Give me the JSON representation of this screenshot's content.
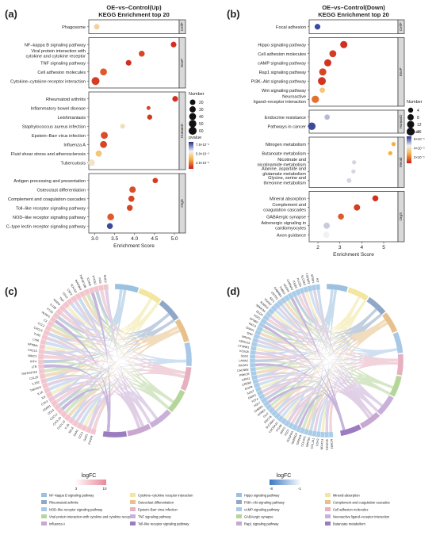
{
  "panels": {
    "a": {
      "letter": "(a)",
      "title1": "OE–vs–Control(Up)",
      "title2": "KEGG Enrichment top 20",
      "xlabel": "Enrichment Score",
      "xticks": [
        3.0,
        3.5,
        4.0,
        4.5,
        5.0
      ],
      "xlim": [
        2.85,
        5.12
      ],
      "groups": [
        {
          "label": "CellP",
          "terms": [
            {
              "name": "Phagosome",
              "x": 3.05,
              "count": 20,
              "p": 0.5
            }
          ]
        },
        {
          "label": "EnvP",
          "terms": [
            {
              "name": "NF–kappa B signaling pathway",
              "x": 4.98,
              "count": 22,
              "p": 0.05
            },
            {
              "name": "Viral protein interaction with cytokine and cytokine receptor",
              "x": 4.18,
              "count": 25,
              "p": 0.1
            },
            {
              "name": "TNF signaling pathway",
              "x": 3.85,
              "count": 22,
              "p": 0.05
            },
            {
              "name": "Cell adhesion molecules",
              "x": 3.22,
              "count": 40,
              "p": 0.15
            },
            {
              "name": "Cytokine–cytokine receptor interaction",
              "x": 3.02,
              "count": 60,
              "p": 0.08
            }
          ]
        },
        {
          "label": "HumanD",
          "terms": [
            {
              "name": "Rheumatoid arthritis",
              "x": 5.02,
              "count": 22,
              "p": 0.05
            },
            {
              "name": "Inflammatory bowel disease",
              "x": 4.35,
              "count": 5,
              "p": 0.1
            },
            {
              "name": "Leishmaniasis",
              "x": 4.38,
              "count": 15,
              "p": 0.07
            },
            {
              "name": "Staphylococcus aureus infection",
              "x": 3.7,
              "count": 12,
              "p": 0.55
            },
            {
              "name": "Epstein–Barr virus infection",
              "x": 3.24,
              "count": 42,
              "p": 0.12
            },
            {
              "name": "Influenza A",
              "x": 3.22,
              "count": 40,
              "p": 0.1
            },
            {
              "name": "Fluid shear stress and atherosclerosis",
              "x": 3.1,
              "count": 30,
              "p": 0.45
            },
            {
              "name": "Tuberculosis",
              "x": 2.92,
              "count": 35,
              "p": 0.58
            }
          ]
        },
        {
          "label": "OrgS",
          "terms": [
            {
              "name": "Antigen processing and presentation",
              "x": 4.52,
              "count": 18,
              "p": 0.08
            },
            {
              "name": "Osteoclast differentiation",
              "x": 3.95,
              "count": 32,
              "p": 0.12
            },
            {
              "name": "Complement and coagulation cascades",
              "x": 3.92,
              "count": 28,
              "p": 0.1
            },
            {
              "name": "Toll–like receptor signaling pathway",
              "x": 3.88,
              "count": 25,
              "p": 0.1
            },
            {
              "name": "NOD–like receptor signaling pathway",
              "x": 3.4,
              "count": 38,
              "p": 0.15
            },
            {
              "name": "C–type lectin receptor signaling pathway",
              "x": 3.38,
              "count": 25,
              "p": 0.95
            }
          ]
        }
      ],
      "size_legend": {
        "title": "Number",
        "values": [
          20,
          30,
          40,
          50,
          60
        ]
      },
      "color_legend": {
        "title": "pvalue",
        "labels": [
          "7.5×10⁻⁵",
          "5.0×10⁻⁵",
          "2.5×10⁻⁵"
        ]
      }
    },
    "b": {
      "letter": "(b)",
      "title1": "OE–vs–Control(Down)",
      "title2": "KEGG Enrichment top 20",
      "xlabel": "Enrichment Score",
      "xticks": [
        2,
        3,
        4,
        5
      ],
      "xlim": [
        1.6,
        5.65
      ],
      "groups": [
        {
          "label": "CellP",
          "terms": [
            {
              "name": "Focal adhesion",
              "x": 1.98,
              "count": 6,
              "p": 0.95
            }
          ]
        },
        {
          "label": "EnvP",
          "terms": [
            {
              "name": "Hippo signaling pathway",
              "x": 3.18,
              "count": 12,
              "p": 0.05
            },
            {
              "name": "Cell adhesion molecules",
              "x": 2.68,
              "count": 11,
              "p": 0.08
            },
            {
              "name": "cAMP signaling pathway",
              "x": 2.45,
              "count": 12,
              "p": 0.06
            },
            {
              "name": "Rap1 signaling pathway",
              "x": 2.22,
              "count": 12,
              "p": 0.1
            },
            {
              "name": "PI3K–Akt signaling pathway",
              "x": 2.18,
              "count": 16,
              "p": 0.06
            },
            {
              "name": "Wnt signaling pathway",
              "x": 2.2,
              "count": 5,
              "p": 0.45
            },
            {
              "name": "Neuroactive ligand–receptor interaction",
              "x": 1.88,
              "count": 13,
              "p": 0.2
            }
          ]
        },
        {
          "label": "HumanD",
          "terms": [
            {
              "name": "Endocrine resistance",
              "x": 2.42,
              "count": 5,
              "p": 0.75
            },
            {
              "name": "Pathways in cancer",
              "x": 1.72,
              "count": 14,
              "p": 0.95
            }
          ]
        },
        {
          "label": "Metab",
          "terms": [
            {
              "name": "Nitrogen metabolism",
              "x": 5.45,
              "count": 2,
              "p": 0.35
            },
            {
              "name": "Butanoate metabolism",
              "x": 5.3,
              "count": 2,
              "p": 0.35
            },
            {
              "name": "Nicotinate and nicotinamide metabolism",
              "x": 3.65,
              "count": 2,
              "p": 0.7
            },
            {
              "name": "Alanine, aspartate and glutamate metabolism",
              "x": 3.62,
              "count": 2,
              "p": 0.7
            },
            {
              "name": "Glycine, serine and threonine metabolism",
              "x": 3.42,
              "count": 3,
              "p": 0.7
            }
          ]
        },
        {
          "label": "OrgS",
          "terms": [
            {
              "name": "Mineral absorption",
              "x": 4.62,
              "count": 7,
              "p": 0.05
            },
            {
              "name": "Complement and coagulation cascades",
              "x": 3.78,
              "count": 8,
              "p": 0.08
            },
            {
              "name": "GABAergic synapse",
              "x": 3.05,
              "count": 7,
              "p": 0.15
            },
            {
              "name": "Adrenergic signaling in cardiomyocytes",
              "x": 2.4,
              "count": 8,
              "p": 0.72
            },
            {
              "name": "Axon guidance",
              "x": 2.38,
              "count": 8,
              "p": 0.65
            }
          ]
        }
      ],
      "size_legend": {
        "title": "Number",
        "values": [
          4,
          8,
          12,
          16
        ]
      },
      "color_legend": {
        "title": "pvalue",
        "labels": [
          "6×10⁻³",
          "4×10⁻³",
          "2×10⁻³"
        ]
      }
    },
    "c": {
      "letter": "(c)",
      "genes": [
        "PTAFR",
        "GAS1",
        "CCL1",
        "SAA1",
        "SELE",
        "IL1B",
        "CXCL13",
        "CXCL10",
        "CXCL2",
        "CCL4",
        "C5AR1",
        "CSF3",
        "IL6",
        "IL1A",
        "TNFAIP3",
        "IL1R2",
        "CCL20",
        "TNFRSF11A",
        "LTB",
        "IRF4",
        "BIRC3",
        "CXCL5",
        "NFKBIA",
        "LY96",
        "TLR2",
        "CXCL3",
        "CCL2",
        "C3",
        "NLRP3",
        "PTX3",
        "IL12B",
        "MMP9",
        "TNF",
        "CD14",
        "CSF2",
        "SOCS3",
        "MAP3K8",
        "TNFSF13B",
        "ICAM1",
        "PTGS2",
        "FOS",
        "NOD2"
      ],
      "legend": {
        "title": "logFC",
        "ticks": [
          "3",
          "10"
        ],
        "items": [
          {
            "label": "NF–kappa B signaling pathway",
            "color": "#9cc0e0"
          },
          {
            "label": "Cytokine–cytokine receptor interaction",
            "color": "#f2e6a0"
          },
          {
            "label": "Rheumatoid arthritis",
            "color": "#8fa8c8"
          },
          {
            "label": "Osteoclast differentiation",
            "color": "#e8c08a"
          },
          {
            "label": "NOD–like receptor signaling pathway",
            "color": "#a8c8e8"
          },
          {
            "label": "Epstein–Barr virus infection",
            "color": "#e6b0c0"
          },
          {
            "label": "Viral protein interaction with cytokine and cytokine receptor",
            "color": "#b6d59a"
          },
          {
            "label": "TNF signaling pathway",
            "color": "#c8b0d8"
          },
          {
            "label": "Influenza A",
            "color": "#c8a8d0"
          },
          {
            "label": "Toll–like receptor signaling pathway",
            "color": "#9b7cc0"
          }
        ]
      }
    },
    "d": {
      "letter": "(d)",
      "genes": [
        "NCAM1",
        "SHANK1",
        "NFATC4",
        "CDH2",
        "COL1A1",
        "WNT5A",
        "COL4A1",
        "GRIN2A",
        "GABRG3",
        "PDGFRA",
        "FZD7",
        "WNT2",
        "ITGA8",
        "CACNA1C",
        "SLC38A1",
        "ADCY8",
        "GLI2",
        "NTRK2",
        "CHRM3",
        "FGF7",
        "TCF4",
        "GRIK2",
        "IL6ST",
        "EGFR",
        "CREB5",
        "GRIA1",
        "PRKCB",
        "CACNB2",
        "PIK3R1",
        "LAMA2",
        "SOX2",
        "KCNJ8",
        "CTNNB1",
        "ADRA1A",
        "NRXN1",
        "SHH",
        "GNAI1",
        "RAC3",
        "EFNB2",
        "FGF2",
        "DLG4",
        "SEMA3A",
        "ROBO2",
        "TGFB2",
        "IGF1",
        "CNTN2",
        "GABRB3",
        "THBS1",
        "VEGFA",
        "CHRNA3",
        "ITGB3",
        "PLCB4",
        "SLC6A2",
        "TGFBR2",
        "SFRP1",
        "KIT"
      ],
      "legend": {
        "title": "logFC",
        "ticks": [
          "-8",
          "-1"
        ],
        "items": [
          {
            "label": "Hippo signaling pathway",
            "color": "#9cc0e0"
          },
          {
            "label": "Mineral absorption",
            "color": "#f2e6a0"
          },
          {
            "label": "PI3K–Akt signaling pathway",
            "color": "#8fa8c8"
          },
          {
            "label": "Complement and coagulation cascades",
            "color": "#e8c08a"
          },
          {
            "label": "cAMP signaling pathway",
            "color": "#a8c8e8"
          },
          {
            "label": "Cell adhesion molecules",
            "color": "#e6b0c0"
          },
          {
            "label": "GABAergic synapse",
            "color": "#b6d59a"
          },
          {
            "label": "Neuroactive ligand–receptor interaction",
            "color": "#c8b0d8"
          },
          {
            "label": "Rap1 signaling pathway",
            "color": "#c8a8d0"
          },
          {
            "label": "Butanoate metabolism",
            "color": "#9b7cc0"
          }
        ]
      }
    }
  },
  "colors": {
    "pvalue_low": "#cc1a1a",
    "pvalue_mid": "#f5b041",
    "pvalue_white": "#f2f2f2",
    "pvalue_high": "#1f2e8a",
    "facet_strip": "#d9d9d9",
    "chord_up": "#f3c6cf",
    "chord_down": "#a9cce8"
  }
}
